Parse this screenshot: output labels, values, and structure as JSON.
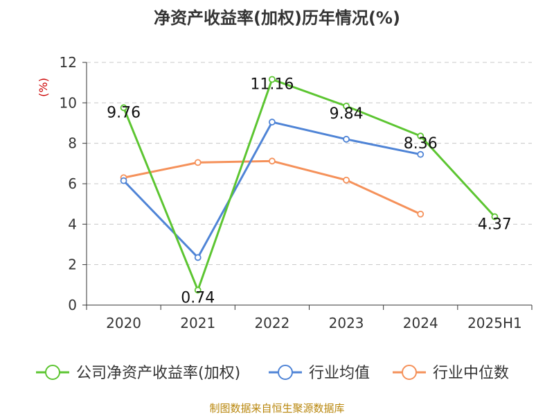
{
  "chart_data": {
    "type": "line",
    "title": "净资产收益率(加权)历年情况(%)",
    "ylabel": "(%)",
    "categories": [
      "2020",
      "2021",
      "2022",
      "2023",
      "2024",
      "2025H1"
    ],
    "ylim": [
      0,
      12
    ],
    "yticks": [
      0,
      2,
      4,
      6,
      8,
      10,
      12
    ],
    "grid": true,
    "legend_position": "bottom",
    "series": [
      {
        "name": "公司净资产收益率(加权)",
        "color": "#5cc531",
        "values": [
          9.76,
          0.74,
          11.16,
          9.84,
          8.36,
          4.37
        ],
        "labels": [
          "9.76",
          "0.74",
          "11.16",
          "9.84",
          "8.36",
          "4.37"
        ]
      },
      {
        "name": "行业均值",
        "color": "#4f84d6",
        "values": [
          6.15,
          2.35,
          9.05,
          8.2,
          7.45,
          null
        ]
      },
      {
        "name": "行业中位数",
        "color": "#f5915a",
        "values": [
          6.3,
          7.05,
          7.12,
          6.18,
          4.5,
          null
        ]
      }
    ]
  },
  "source": "制图数据来自恒生聚源数据库"
}
